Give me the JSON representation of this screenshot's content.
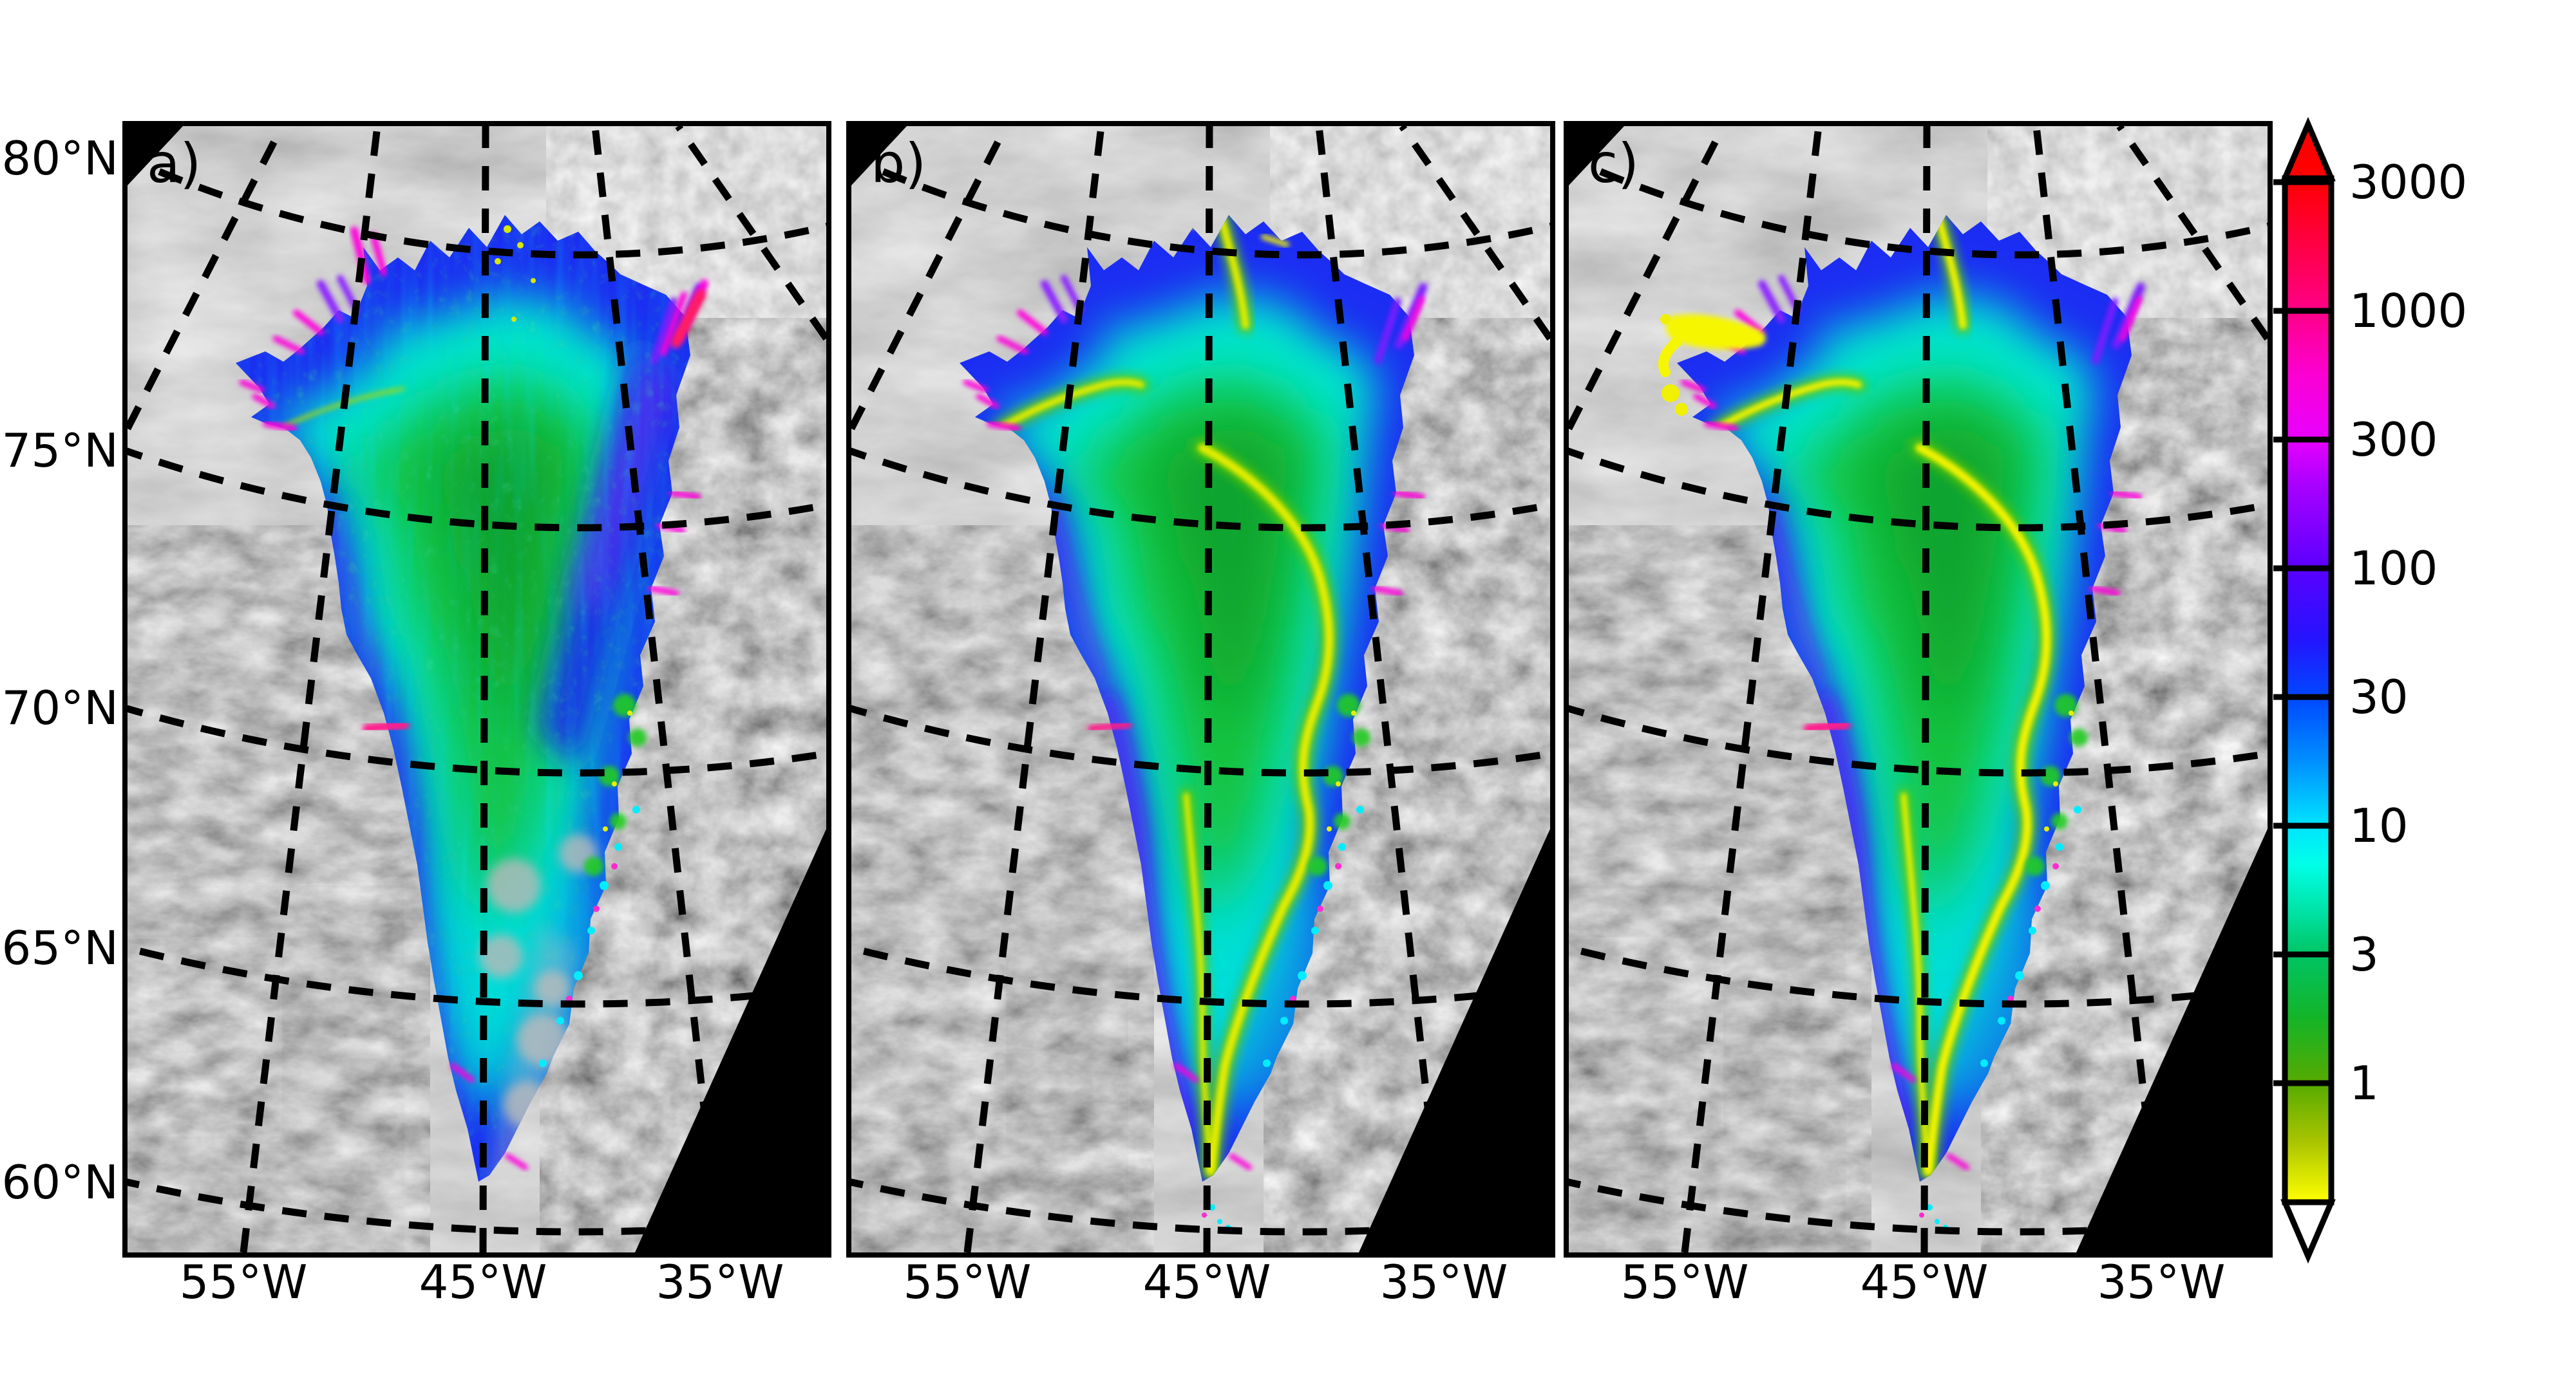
{
  "figure": {
    "description": "Three-panel Greenland ice-sheet surface-speed maps over grayscale satellite mosaic with shared log colorbar",
    "background_color": "#ffffff"
  },
  "panels": [
    {
      "label": "a)"
    },
    {
      "label": "b)"
    },
    {
      "label": "c)"
    }
  ],
  "latitude_axis": {
    "labels": [
      "80°N",
      "75°N",
      "70°N",
      "65°N",
      "60°N"
    ]
  },
  "longitude_axis": {
    "labels": [
      "55°W",
      "45°W",
      "35°W"
    ],
    "repeated_under_each_panel": true
  },
  "colorbar": {
    "tick_labels": [
      "3000",
      "1000",
      "300",
      "100",
      "30",
      "10",
      "3",
      "1"
    ],
    "scale": "log",
    "arrow_top_color": "#ff0000",
    "arrow_bottom_color": "#ffffff",
    "colors_top_to_bottom": [
      "#ff0000",
      "#ff0080",
      "#e800ff",
      "#a800ff",
      "#5a00ff",
      "#2414ff",
      "#0048ff",
      "#0090ff",
      "#00e4ff",
      "#00ffe8",
      "#00e0a0",
      "#00c464",
      "#14b428",
      "#57aa00",
      "#a8c400",
      "#ffff00"
    ]
  },
  "map_colors": {
    "slow_interior_green": "#17c23a",
    "mid_speed_cyan": "#00e6cf",
    "fast_margin_blue": "#1b2df2",
    "outlet_glacier_magenta": "#ff00dc",
    "ice_stream_yellow": "#f0f000",
    "no_data_black": "#000000"
  },
  "chart_data": {
    "type": "heatmap",
    "subtype": "geographic-velocity-maps",
    "title": "",
    "panels": [
      "a)",
      "b)",
      "c)"
    ],
    "colorbar_ticks": [
      3000,
      1000,
      300,
      100,
      30,
      10,
      3,
      1
    ],
    "colorbar_range": [
      1,
      3000
    ],
    "colorbar_extends": "arrows above 3000 and below 1",
    "scale": "log",
    "latitude_ticks_degN": [
      80,
      75,
      70,
      65,
      60
    ],
    "longitude_ticks_degW": [
      55,
      45,
      35
    ],
    "legend_position": "right",
    "grid": "dashed graticule over maps"
  }
}
